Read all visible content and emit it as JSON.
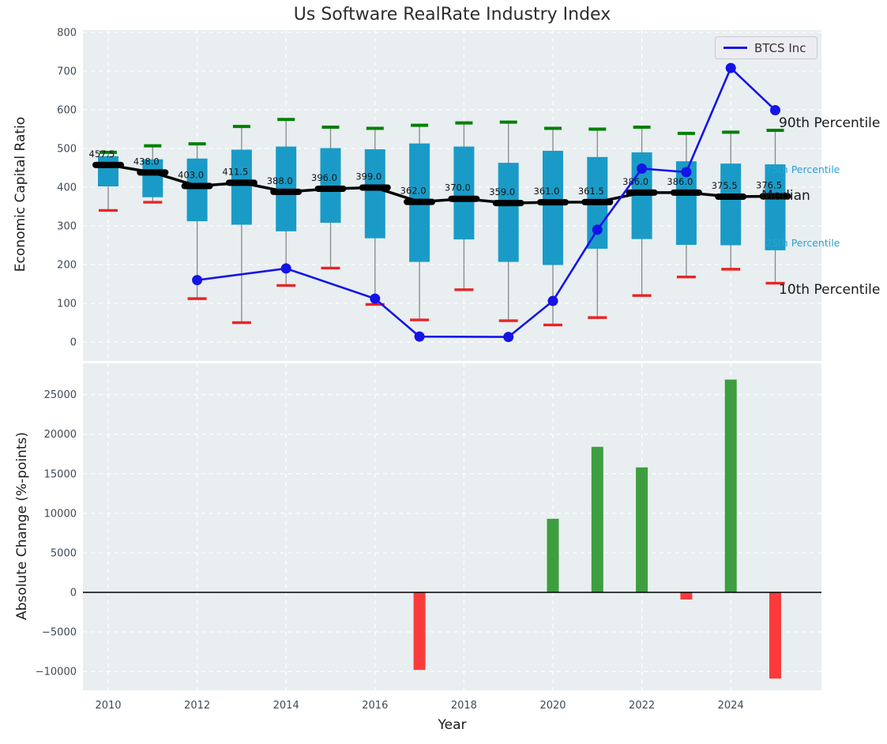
{
  "figure": {
    "title": "Us Software RealRate Industry Index",
    "xlabel": "Year"
  },
  "legend": {
    "entries": [
      {
        "label": "BTCS Inc",
        "color": "#1414e6"
      }
    ]
  },
  "chart_data": [
    {
      "type": "boxplot-timeseries",
      "title": "Us Software RealRate Industry Index",
      "ylabel": "Economic Capital Ratio",
      "ylim": [
        0,
        800
      ],
      "yticks": [
        0,
        100,
        200,
        300,
        400,
        500,
        600,
        700,
        800
      ],
      "grid": true,
      "years": [
        2010,
        2011,
        2012,
        2013,
        2014,
        2015,
        2016,
        2017,
        2018,
        2019,
        2020,
        2021,
        2022,
        2023,
        2024,
        2025
      ],
      "series": {
        "p90": [
          490,
          507,
          512,
          557,
          575,
          555,
          552,
          560,
          566,
          568,
          552,
          550,
          555,
          539,
          542,
          547
        ],
        "p75": [
          480,
          472,
          474,
          497,
          505,
          501,
          498,
          513,
          505,
          463,
          494,
          478,
          490,
          467,
          461,
          459
        ],
        "median": [
          457.5,
          438,
          403,
          411.5,
          388,
          396,
          399,
          362,
          370,
          359,
          361,
          361.5,
          386,
          386,
          375.5,
          376.5
        ],
        "p25": [
          402,
          374,
          312,
          303,
          286,
          308,
          268,
          207,
          265,
          207,
          199,
          241,
          266,
          251,
          250,
          237
        ],
        "p10": [
          340,
          361,
          112,
          50,
          146,
          191,
          97,
          57,
          135,
          55,
          44,
          63,
          120,
          168,
          188,
          152
        ]
      },
      "median_labels": [
        "457.5",
        "438.0",
        "403.0",
        "411.5",
        "388.0",
        "396.0",
        "399.0",
        "362.0",
        "370.0",
        "359.0",
        "361.0",
        "361.5",
        "386.0",
        "386.0",
        "375.5",
        "376.5"
      ],
      "btcs": {
        "name": "BTCS Inc",
        "years": [
          2012,
          2014,
          2016,
          2017,
          2019,
          2020,
          2021,
          2022,
          2023,
          2024,
          2025
        ],
        "values": [
          160,
          190,
          112,
          14,
          13,
          106,
          290,
          448,
          439,
          708,
          599
        ]
      },
      "annotations": [
        {
          "text": "90th Percentile",
          "color": "#1a1a1a",
          "size": 17
        },
        {
          "text": "75th Percentile",
          "color": "#29a3d7",
          "size": 12.5
        },
        {
          "text": "Median",
          "color": "#1a1a1a",
          "size": 17
        },
        {
          "text": "25th Percentile",
          "color": "#29a3d7",
          "size": 12.5
        },
        {
          "text": "10th Percentile",
          "color": "#1a1a1a",
          "size": 17
        }
      ],
      "colors": {
        "box": "#1a9bc7",
        "median": "#000000",
        "p90_cap": "#008000",
        "p10_cap": "#e82525",
        "whisker": "#888888",
        "btcs_line": "#1414e6",
        "axes_bg": "#e9eef1",
        "grid": "#ffffff",
        "tick": "#3d4a57"
      }
    },
    {
      "type": "bar",
      "ylabel": "Absolute Change (%-points)",
      "xlabel": "Year",
      "yticks": [
        -10000,
        -5000,
        0,
        5000,
        10000,
        15000,
        20000,
        25000
      ],
      "xticks": [
        2010,
        2012,
        2014,
        2016,
        2018,
        2020,
        2022,
        2024
      ],
      "categories": [
        2017,
        2020,
        2021,
        2022,
        2023,
        2024,
        2025
      ],
      "values": [
        -9800,
        9300,
        18400,
        15800,
        -900,
        26900,
        -10900
      ],
      "colors": {
        "positive": "#3d9e3f",
        "negative": "#fb3b3b",
        "zero_line": "#000000",
        "axes_bg": "#e9eef1",
        "grid": "#ffffff",
        "tick": "#3d4a57"
      }
    }
  ]
}
